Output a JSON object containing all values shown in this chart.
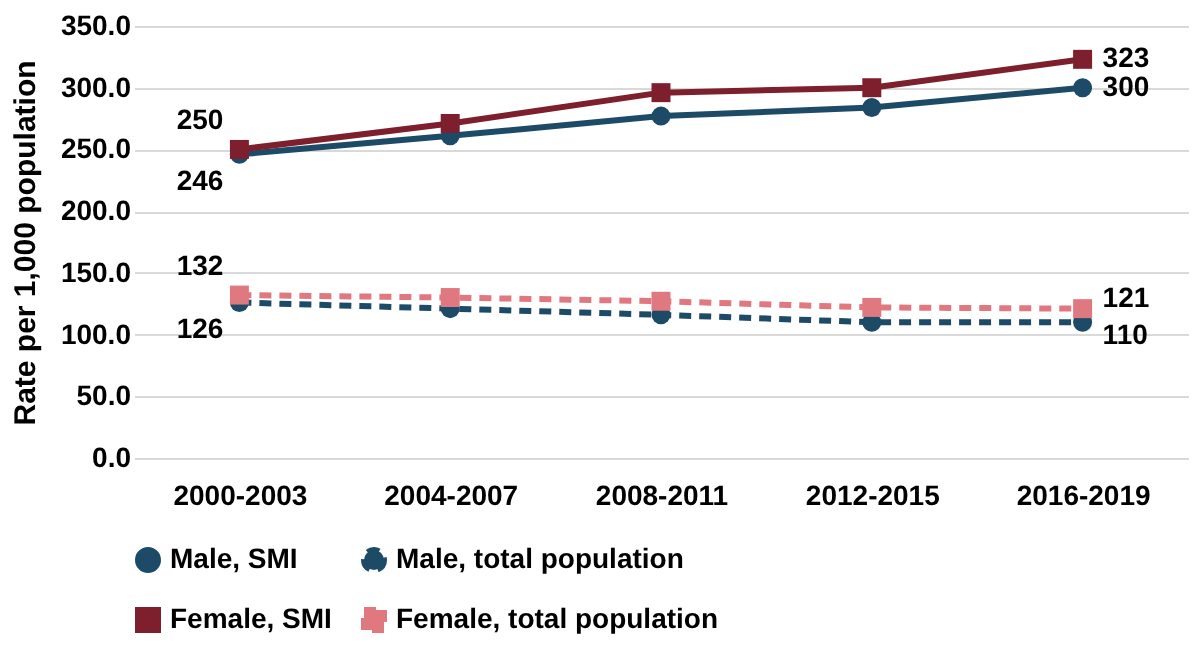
{
  "chart_data": {
    "type": "line",
    "ylabel": "Rate per 1,000 population",
    "categories": [
      "2000-2003",
      "2004-2007",
      "2008-2011",
      "2012-2015",
      "2016-2019"
    ],
    "ylim": [
      0,
      350
    ],
    "yticks": [
      {
        "value": 0,
        "label": "0.0"
      },
      {
        "value": 50,
        "label": "50.0"
      },
      {
        "value": 100,
        "label": "100.0"
      },
      {
        "value": 150,
        "label": "150.0"
      },
      {
        "value": 200,
        "label": "200.0"
      },
      {
        "value": 250,
        "label": "250.0"
      },
      {
        "value": 300,
        "label": "300.0"
      },
      {
        "value": 350,
        "label": "350.0"
      }
    ],
    "grid": "y",
    "legend": "bottom",
    "series": [
      {
        "name": "Male, SMI",
        "color": "#1d4a66",
        "marker": "circle",
        "line_style": "solid",
        "values": [
          246,
          261,
          277,
          284,
          300
        ],
        "value_labels": [
          "246",
          null,
          null,
          null,
          "300"
        ]
      },
      {
        "name": "Male, total population",
        "color": "#1d4a66",
        "marker": "circle",
        "line_style": "dashed",
        "values": [
          126,
          121,
          116,
          110,
          110
        ],
        "value_labels": [
          "126",
          null,
          null,
          null,
          "110"
        ]
      },
      {
        "name": "Female, SMI",
        "color": "#7d1f2c",
        "marker": "square",
        "line_style": "solid",
        "values": [
          250,
          271,
          296,
          300,
          323
        ],
        "value_labels": [
          "250",
          null,
          null,
          null,
          "323"
        ]
      },
      {
        "name": "Female, total population",
        "color": "#e07880",
        "marker": "square",
        "line_style": "dashed",
        "values": [
          132,
          130,
          127,
          122,
          121
        ],
        "value_labels": [
          "132",
          null,
          null,
          null,
          "121"
        ]
      }
    ]
  }
}
